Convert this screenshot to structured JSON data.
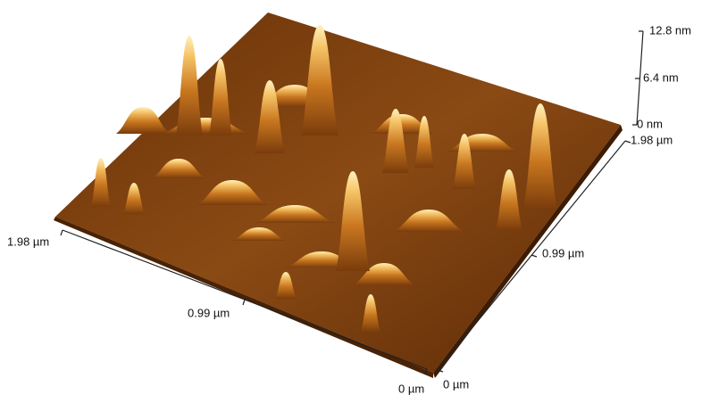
{
  "z_axis": {
    "ticks": [
      "12.8 nm",
      "6.4 nm",
      "0 nm"
    ]
  },
  "y_axis": {
    "ticks": [
      "1.98 µm",
      "0.99 µm",
      "0 µm"
    ]
  },
  "x_axis": {
    "ticks": [
      "0 µm",
      "0.99 µm",
      "1.98 µm"
    ]
  }
}
